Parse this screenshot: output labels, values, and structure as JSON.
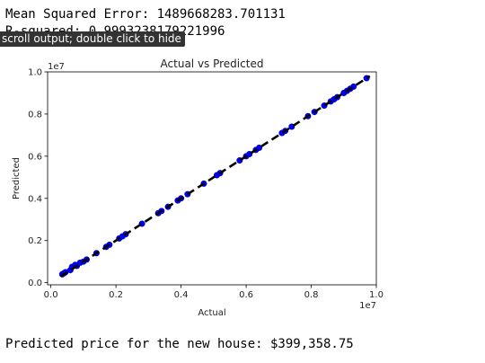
{
  "output": {
    "mse_line": "Mean Squared Error: 1489668283.701131",
    "r2_line": "R-squared: 0.9993238179221996",
    "tooltip": "scroll output; double click to hide",
    "prediction_line": "Predicted price for the new house: $399,358.75"
  },
  "chart_data": {
    "type": "scatter",
    "title": "Actual vs Predicted",
    "xlabel": "Actual",
    "ylabel": "Predicted",
    "x_offset_label": "1e7",
    "y_offset_label": "1e7",
    "xlim": [
      -0.01,
      1.0
    ],
    "ylim": [
      -0.01,
      1.0
    ],
    "xticks": [
      0.0,
      0.2,
      0.4,
      0.6,
      0.8,
      1.0
    ],
    "xtick_labels": [
      "0.0",
      "0.2",
      "0.4",
      "0.6",
      "0.8",
      "1.0"
    ],
    "yticks": [
      0.0,
      0.2,
      0.4,
      0.6,
      0.8,
      1.0
    ],
    "ytick_labels": [
      "0.0",
      "0.2",
      "0.4",
      "0.6",
      "0.8",
      "1.0"
    ],
    "grid": false,
    "reference_line": {
      "from": [
        0.03,
        0.03
      ],
      "to": [
        0.98,
        0.98
      ],
      "color": "#000000",
      "style": "dashed"
    },
    "series": [
      {
        "color": "#0000ff",
        "x": [
          0.035,
          0.04,
          0.045,
          0.06,
          0.065,
          0.075,
          0.08,
          0.09,
          0.1,
          0.11,
          0.14,
          0.17,
          0.18,
          0.21,
          0.22,
          0.23,
          0.28,
          0.33,
          0.34,
          0.36,
          0.39,
          0.4,
          0.42,
          0.47,
          0.51,
          0.52,
          0.58,
          0.6,
          0.61,
          0.63,
          0.64,
          0.71,
          0.72,
          0.74,
          0.79,
          0.81,
          0.84,
          0.86,
          0.87,
          0.88,
          0.9,
          0.91,
          0.92,
          0.93,
          0.97
        ],
        "y": [
          0.04,
          0.045,
          0.05,
          0.06,
          0.075,
          0.085,
          0.08,
          0.095,
          0.1,
          0.11,
          0.14,
          0.17,
          0.18,
          0.21,
          0.22,
          0.23,
          0.28,
          0.33,
          0.34,
          0.36,
          0.39,
          0.4,
          0.42,
          0.47,
          0.51,
          0.52,
          0.58,
          0.6,
          0.61,
          0.63,
          0.64,
          0.71,
          0.72,
          0.74,
          0.79,
          0.81,
          0.84,
          0.86,
          0.87,
          0.88,
          0.9,
          0.91,
          0.92,
          0.93,
          0.97
        ]
      }
    ]
  }
}
